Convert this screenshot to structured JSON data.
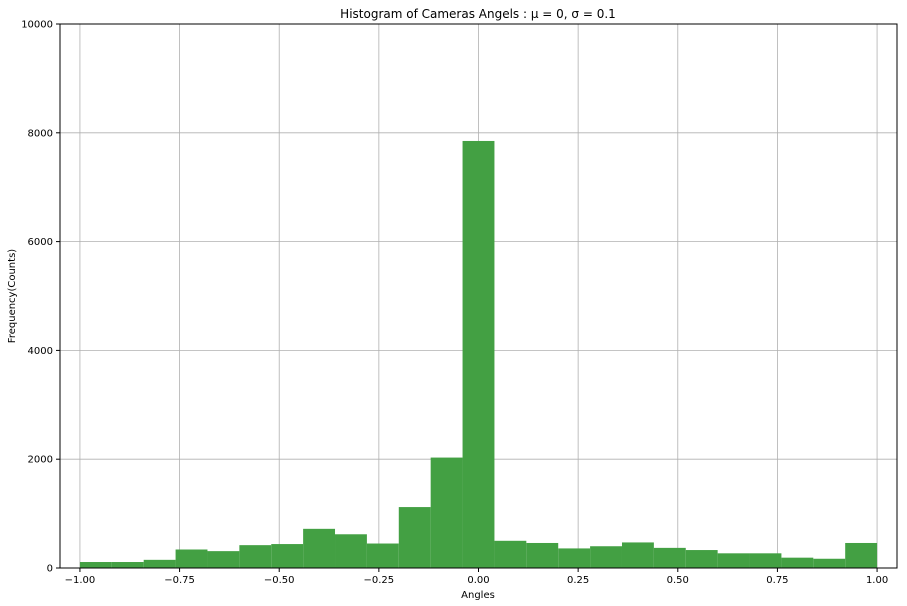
{
  "chart_data": {
    "type": "bar",
    "title": "Histogram of Cameras Angels : μ = 0,  σ = 0.1",
    "xlabel": "Angles",
    "ylabel": "Frequency(Counts)",
    "xlim": [
      -1.05,
      1.05
    ],
    "ylim": [
      0,
      10000
    ],
    "grid": true,
    "bar_color": "#43a043",
    "bin_width": 0.08,
    "bins": [
      {
        "x0": -1.0,
        "value": 110
      },
      {
        "x0": -0.92,
        "value": 110
      },
      {
        "x0": -0.84,
        "value": 150
      },
      {
        "x0": -0.76,
        "value": 340
      },
      {
        "x0": -0.68,
        "value": 310
      },
      {
        "x0": -0.6,
        "value": 420
      },
      {
        "x0": -0.52,
        "value": 440
      },
      {
        "x0": -0.44,
        "value": 720
      },
      {
        "x0": -0.36,
        "value": 620
      },
      {
        "x0": -0.28,
        "value": 450
      },
      {
        "x0": -0.2,
        "value": 1120
      },
      {
        "x0": -0.12,
        "value": 2030
      },
      {
        "x0": -0.04,
        "value": 7850
      },
      {
        "x0": 0.04,
        "value": 500
      },
      {
        "x0": 0.12,
        "value": 460
      },
      {
        "x0": 0.2,
        "value": 360
      },
      {
        "x0": 0.28,
        "value": 400
      },
      {
        "x0": 0.36,
        "value": 470
      },
      {
        "x0": 0.44,
        "value": 370
      },
      {
        "x0": 0.52,
        "value": 330
      },
      {
        "x0": 0.6,
        "value": 270
      },
      {
        "x0": 0.68,
        "value": 270
      },
      {
        "x0": 0.76,
        "value": 190
      },
      {
        "x0": 0.84,
        "value": 170
      },
      {
        "x0": 0.92,
        "value": 460
      }
    ],
    "x_ticks": [
      {
        "value": -1.0,
        "label": "−1.00"
      },
      {
        "value": -0.75,
        "label": "−0.75"
      },
      {
        "value": -0.5,
        "label": "−0.50"
      },
      {
        "value": -0.25,
        "label": "−0.25"
      },
      {
        "value": 0.0,
        "label": "0.00"
      },
      {
        "value": 0.25,
        "label": "0.25"
      },
      {
        "value": 0.5,
        "label": "0.50"
      },
      {
        "value": 0.75,
        "label": "0.75"
      },
      {
        "value": 1.0,
        "label": "1.00"
      }
    ],
    "y_ticks": [
      {
        "value": 0,
        "label": "0"
      },
      {
        "value": 2000,
        "label": "2000"
      },
      {
        "value": 4000,
        "label": "4000"
      },
      {
        "value": 6000,
        "label": "6000"
      },
      {
        "value": 8000,
        "label": "8000"
      },
      {
        "value": 10000,
        "label": "10000"
      }
    ]
  }
}
